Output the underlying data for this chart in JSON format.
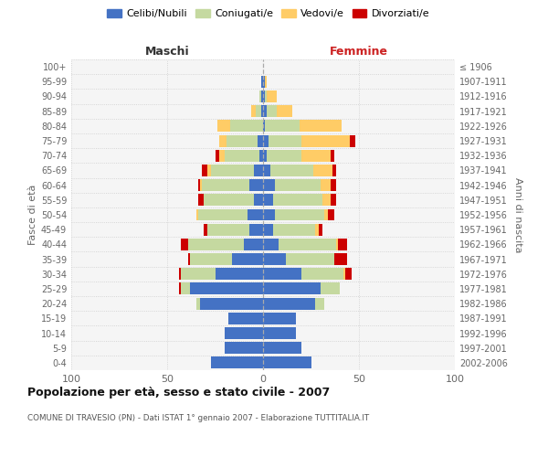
{
  "age_groups": [
    "0-4",
    "5-9",
    "10-14",
    "15-19",
    "20-24",
    "25-29",
    "30-34",
    "35-39",
    "40-44",
    "45-49",
    "50-54",
    "55-59",
    "60-64",
    "65-69",
    "70-74",
    "75-79",
    "80-84",
    "85-89",
    "90-94",
    "95-99",
    "100+"
  ],
  "birth_years": [
    "2002-2006",
    "1997-2001",
    "1992-1996",
    "1987-1991",
    "1982-1986",
    "1977-1981",
    "1972-1976",
    "1967-1971",
    "1962-1966",
    "1957-1961",
    "1952-1956",
    "1947-1951",
    "1942-1946",
    "1937-1941",
    "1932-1936",
    "1927-1931",
    "1922-1926",
    "1917-1921",
    "1912-1916",
    "1907-1911",
    "≤ 1906"
  ],
  "maschi": {
    "celibi": [
      27,
      20,
      20,
      18,
      33,
      38,
      25,
      16,
      10,
      7,
      8,
      5,
      7,
      5,
      2,
      3,
      0,
      1,
      1,
      1,
      0
    ],
    "coniugati": [
      0,
      0,
      0,
      0,
      2,
      5,
      18,
      22,
      29,
      22,
      26,
      26,
      25,
      22,
      18,
      16,
      17,
      3,
      1,
      0,
      0
    ],
    "vedovi": [
      0,
      0,
      0,
      0,
      0,
      0,
      0,
      0,
      0,
      0,
      1,
      0,
      1,
      2,
      3,
      4,
      7,
      2,
      0,
      0,
      0
    ],
    "divorziati": [
      0,
      0,
      0,
      0,
      0,
      1,
      1,
      1,
      4,
      2,
      0,
      3,
      1,
      3,
      2,
      0,
      0,
      0,
      0,
      0,
      0
    ]
  },
  "femmine": {
    "nubili": [
      25,
      20,
      17,
      17,
      27,
      30,
      20,
      12,
      8,
      5,
      6,
      5,
      6,
      4,
      2,
      3,
      1,
      2,
      1,
      1,
      0
    ],
    "coniugate": [
      0,
      0,
      0,
      0,
      5,
      10,
      22,
      25,
      30,
      22,
      26,
      26,
      24,
      22,
      18,
      17,
      18,
      5,
      1,
      0,
      0
    ],
    "vedove": [
      0,
      0,
      0,
      0,
      0,
      0,
      1,
      0,
      1,
      2,
      2,
      4,
      5,
      10,
      15,
      25,
      22,
      8,
      5,
      1,
      0
    ],
    "divorziate": [
      0,
      0,
      0,
      0,
      0,
      0,
      3,
      7,
      5,
      2,
      3,
      3,
      3,
      2,
      2,
      3,
      0,
      0,
      0,
      0,
      0
    ]
  },
  "colors": {
    "celibi": "#4472C4",
    "coniugati": "#c5d9a0",
    "vedovi": "#ffcc66",
    "divorziati": "#cc0000"
  },
  "title": "Popolazione per età, sesso e stato civile - 2007",
  "subtitle": "COMUNE DI TRAVESIO (PN) - Dati ISTAT 1° gennaio 2007 - Elaborazione TUTTITALIA.IT",
  "xlabel_left": "Maschi",
  "xlabel_right": "Femmine",
  "ylabel_left": "Fasce di età",
  "ylabel_right": "Anni di nascita",
  "xlim": 100,
  "legend_labels": [
    "Celibi/Nubili",
    "Coniugati/e",
    "Vedovi/e",
    "Divorziati/e"
  ],
  "background_color": "#ffffff",
  "plot_bg": "#f5f5f5"
}
